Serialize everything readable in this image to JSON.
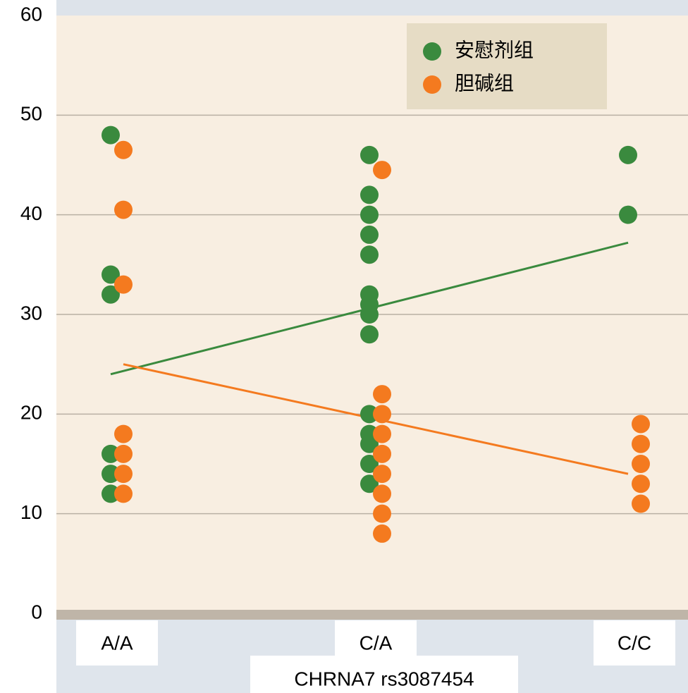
{
  "chart_data": {
    "type": "dot",
    "xlabel": "CHRNA7 rs3087454",
    "categories": [
      "A/A",
      "C/A",
      "C/C"
    ],
    "ylim": [
      0,
      60
    ],
    "yticks": [
      0,
      10,
      20,
      30,
      40,
      50,
      60
    ],
    "grid": true,
    "series": [
      {
        "name": "安慰剂组",
        "color": "#3a8a3e",
        "values": [
          [
            48,
            34,
            32,
            16,
            14,
            12
          ],
          [
            46,
            42,
            40,
            38,
            36,
            32,
            31,
            30,
            28,
            20,
            18,
            17,
            15,
            13
          ],
          [
            46,
            40
          ]
        ],
        "fit": [
          24,
          37.2
        ]
      },
      {
        "name": "胆碱组",
        "color": "#f47a1f",
        "values": [
          [
            46.5,
            40.5,
            33,
            18,
            16,
            14,
            12
          ],
          [
            44.5,
            22,
            20,
            18,
            16,
            14,
            12,
            10,
            8
          ],
          [
            19,
            17,
            15,
            13,
            11
          ]
        ],
        "fit": [
          25,
          14
        ]
      }
    ]
  }
}
